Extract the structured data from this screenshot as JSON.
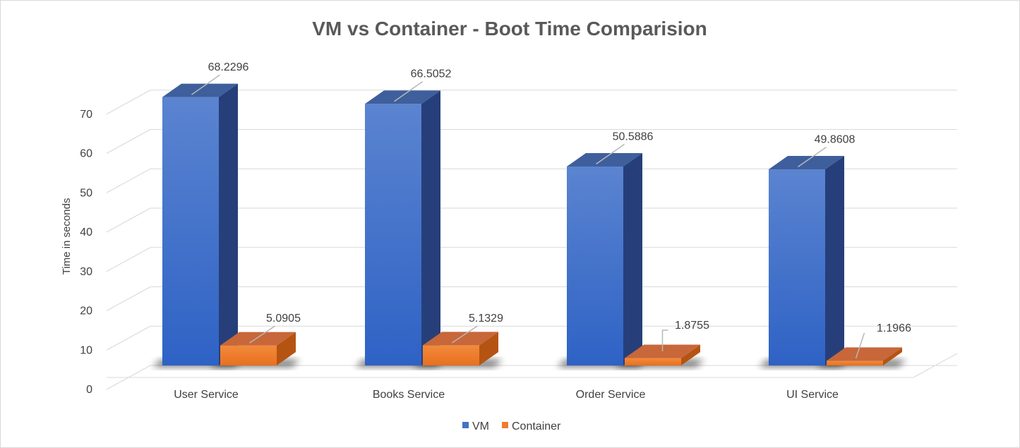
{
  "chart_data": {
    "type": "bar",
    "title": "VM vs Container - Boot Time Comparision",
    "xlabel": "",
    "ylabel": "Time in seconds",
    "categories": [
      "User Service",
      "Books Service",
      "Order Service",
      "UI Service"
    ],
    "series": [
      {
        "name": "VM",
        "color": "#4472C4",
        "values": [
          68.2296,
          66.5052,
          50.5886,
          49.8608
        ],
        "labels": [
          "68.2296",
          "66.5052",
          "50.5886",
          "49.8608"
        ]
      },
      {
        "name": "Container",
        "color": "#ED7D31",
        "values": [
          5.0905,
          5.1329,
          1.8755,
          1.1966
        ],
        "labels": [
          "5.0905",
          "5.1329",
          "1.8755",
          "1.1966"
        ]
      }
    ],
    "ylim": [
      0,
      70
    ],
    "yticks": [
      0,
      10,
      20,
      30,
      40,
      50,
      60,
      70
    ],
    "grid": true,
    "legend": "bottom",
    "style": "3d-clustered-column"
  }
}
